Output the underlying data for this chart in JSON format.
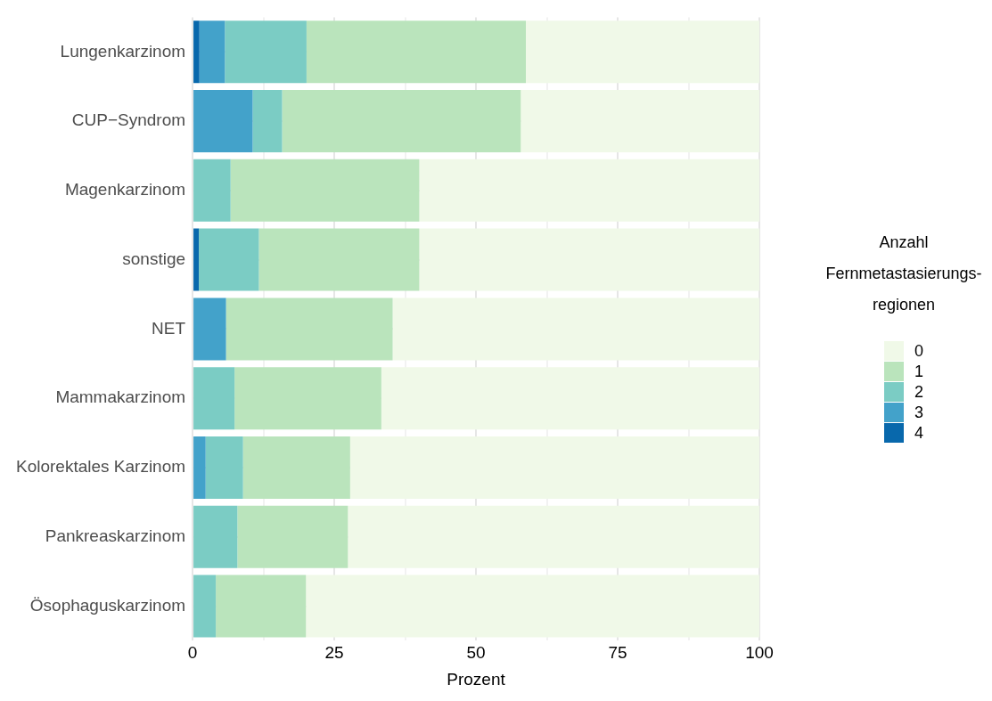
{
  "chart_data": {
    "type": "bar",
    "orientation": "horizontal",
    "stacked": true,
    "xlabel": "Prozent",
    "legend_title": "Anzahl Fernmetastasierungs-regionen",
    "legend": "right",
    "grid": true,
    "categories": [
      "Lungenkarzinom",
      "CUP−Syndrom",
      "Magenkarzinom",
      "sonstige",
      "NET",
      "Mammakarzinom",
      "Kolorektales Karzinom",
      "Pankreaskarzinom",
      "Ösophaguskarzinom"
    ],
    "xlim": [
      0,
      100
    ],
    "xticks": [
      0,
      {
        "value": 12.5,
        "label": null
      },
      25,
      {
        "value": 37.5,
        "label": null
      },
      50,
      {
        "value": 62.5,
        "label": null
      },
      75,
      {
        "value": 87.5,
        "label": null
      },
      100
    ],
    "series": [
      {
        "name": "4",
        "color": "#0868ac",
        "values": [
          1.2,
          0,
          0,
          1.1,
          0,
          0,
          0,
          0,
          0
        ]
      },
      {
        "name": "3",
        "color": "#43a2ca",
        "values": [
          4.5,
          10.6,
          0,
          0,
          5.9,
          0,
          2.3,
          0,
          0
        ]
      },
      {
        "name": "2",
        "color": "#7bccc4",
        "values": [
          14.4,
          5.2,
          6.7,
          10.6,
          0,
          7.4,
          6.6,
          7.9,
          4.1
        ]
      },
      {
        "name": "1",
        "color": "#bae4bc",
        "values": [
          38.7,
          42.1,
          33.3,
          28.3,
          29.4,
          25.9,
          18.9,
          19.5,
          15.9
        ]
      },
      {
        "name": "0",
        "color": "#f0f9e8",
        "values": [
          41.2,
          42.1,
          60,
          60,
          64.7,
          66.7,
          72.2,
          72.6,
          80
        ]
      }
    ]
  }
}
